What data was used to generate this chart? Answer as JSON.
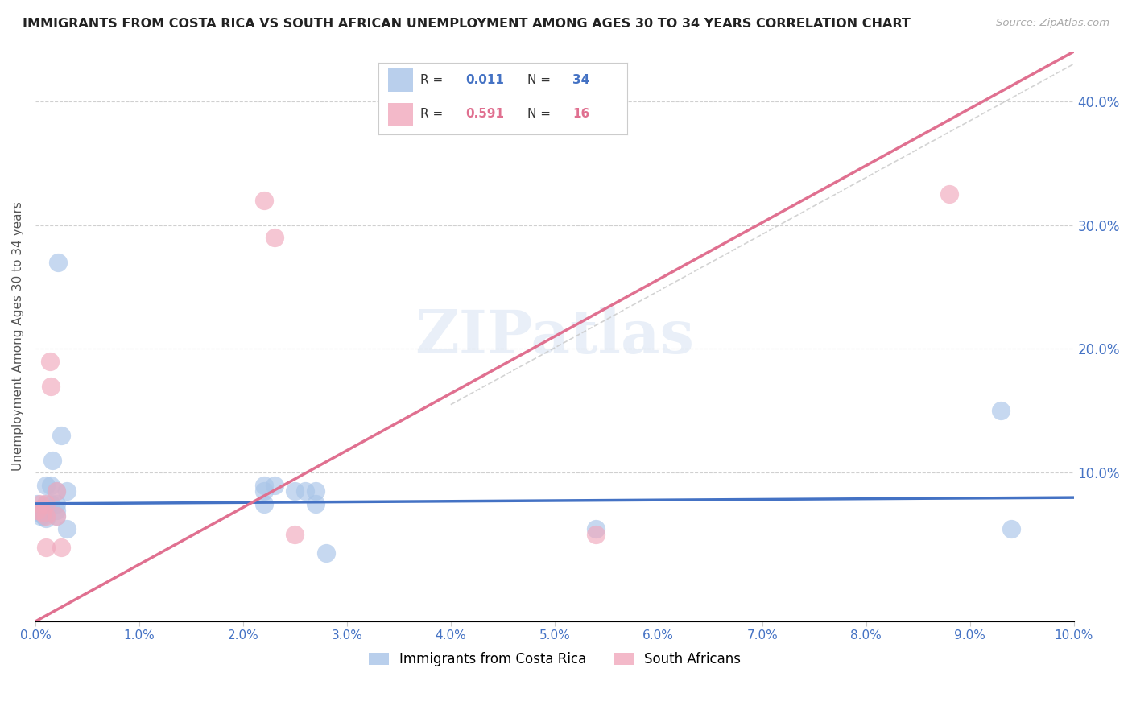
{
  "title": "IMMIGRANTS FROM COSTA RICA VS SOUTH AFRICAN UNEMPLOYMENT AMONG AGES 30 TO 34 YEARS CORRELATION CHART",
  "source": "Source: ZipAtlas.com",
  "ylabel": "Unemployment Among Ages 30 to 34 years",
  "xlim": [
    0.0,
    0.1
  ],
  "ylim": [
    -0.02,
    0.44
  ],
  "xticks": [
    0.0,
    0.01,
    0.02,
    0.03,
    0.04,
    0.05,
    0.06,
    0.07,
    0.08,
    0.09,
    0.1
  ],
  "xtick_labels": [
    "0.0%",
    "1.0%",
    "2.0%",
    "3.0%",
    "4.0%",
    "5.0%",
    "6.0%",
    "7.0%",
    "8.0%",
    "9.0%",
    "10.0%"
  ],
  "yticks_right": [
    0.1,
    0.2,
    0.3,
    0.4
  ],
  "ytick_labels_right": [
    "10.0%",
    "20.0%",
    "30.0%",
    "40.0%"
  ],
  "color_blue": "#a8c4e8",
  "color_pink": "#f0a8bc",
  "color_blue_line": "#4472c4",
  "color_pink_line": "#e07090",
  "color_diag_line": "#c8c8c8",
  "watermark": "ZIPatlas",
  "blue_scatter_x": [
    0.0002,
    0.0003,
    0.0004,
    0.0005,
    0.0006,
    0.0007,
    0.0008,
    0.001,
    0.001,
    0.001,
    0.001,
    0.0015,
    0.0015,
    0.0016,
    0.002,
    0.002,
    0.002,
    0.002,
    0.0022,
    0.0025,
    0.003,
    0.003,
    0.022,
    0.022,
    0.022,
    0.023,
    0.025,
    0.026,
    0.027,
    0.027,
    0.028,
    0.054,
    0.093,
    0.094
  ],
  "blue_scatter_y": [
    0.075,
    0.07,
    0.068,
    0.065,
    0.068,
    0.07,
    0.065,
    0.09,
    0.075,
    0.068,
    0.063,
    0.09,
    0.075,
    0.11,
    0.085,
    0.075,
    0.07,
    0.065,
    0.27,
    0.13,
    0.085,
    0.055,
    0.09,
    0.085,
    0.075,
    0.09,
    0.085,
    0.085,
    0.085,
    0.075,
    0.035,
    0.055,
    0.15,
    0.055
  ],
  "pink_scatter_x": [
    0.0002,
    0.0005,
    0.0007,
    0.001,
    0.001,
    0.001,
    0.0014,
    0.0015,
    0.002,
    0.002,
    0.0025,
    0.022,
    0.023,
    0.025,
    0.054,
    0.088
  ],
  "pink_scatter_y": [
    0.07,
    0.075,
    0.068,
    0.075,
    0.065,
    0.04,
    0.19,
    0.17,
    0.085,
    0.065,
    0.04,
    0.32,
    0.29,
    0.05,
    0.05,
    0.325
  ],
  "blue_line_x": [
    0.0,
    0.1
  ],
  "blue_line_y": [
    0.075,
    0.08
  ],
  "pink_line_x": [
    0.0,
    0.1
  ],
  "pink_line_y": [
    -0.02,
    0.44
  ],
  "diag_line_x": [
    0.04,
    0.1
  ],
  "diag_line_y": [
    0.155,
    0.43
  ],
  "legend_items": [
    {
      "label": "R = ",
      "value": "0.011",
      "n_label": "N = ",
      "n_value": "34",
      "color_box": "#a8c4e8",
      "color_val": "#4472c4"
    },
    {
      "label": "R = ",
      "value": "0.591",
      "n_label": "N = ",
      "n_value": "16",
      "color_box": "#f0a8bc",
      "color_val": "#4472c4"
    }
  ],
  "bottom_legend": [
    {
      "label": "Immigrants from Costa Rica",
      "color": "#a8c4e8"
    },
    {
      "label": "South Africans",
      "color": "#f0a8bc"
    }
  ]
}
